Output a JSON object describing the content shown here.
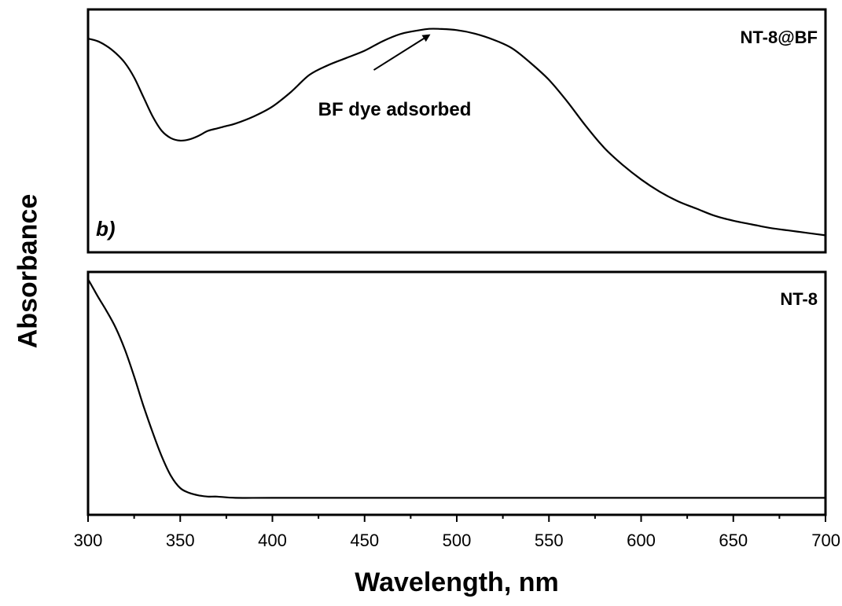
{
  "chart_data": [
    {
      "type": "line",
      "panel_label": "b)",
      "series": [
        {
          "name": "NT-8@BF",
          "x": [
            300,
            305,
            310,
            315,
            320,
            325,
            330,
            335,
            340,
            345,
            350,
            355,
            360,
            365,
            370,
            375,
            380,
            390,
            400,
            410,
            420,
            430,
            440,
            450,
            460,
            470,
            480,
            485,
            490,
            500,
            510,
            520,
            530,
            540,
            550,
            560,
            570,
            580,
            590,
            600,
            610,
            620,
            630,
            640,
            650,
            660,
            670,
            680,
            690,
            700
          ],
          "y": [
            0.88,
            0.87,
            0.85,
            0.82,
            0.78,
            0.72,
            0.64,
            0.56,
            0.5,
            0.47,
            0.46,
            0.465,
            0.48,
            0.5,
            0.51,
            0.52,
            0.53,
            0.56,
            0.6,
            0.66,
            0.73,
            0.77,
            0.8,
            0.83,
            0.87,
            0.9,
            0.915,
            0.92,
            0.92,
            0.915,
            0.9,
            0.875,
            0.84,
            0.78,
            0.71,
            0.62,
            0.52,
            0.43,
            0.36,
            0.3,
            0.25,
            0.21,
            0.18,
            0.15,
            0.13,
            0.115,
            0.1,
            0.09,
            0.08,
            0.07
          ]
        }
      ],
      "annotation": {
        "text": "BF dye adsorbed",
        "arrow_to": [
          485,
          0.92
        ],
        "arrow_from": [
          455,
          0.77
        ]
      },
      "xlim": [
        300,
        700
      ],
      "ylim": [
        0,
        1
      ]
    },
    {
      "type": "line",
      "series": [
        {
          "name": "NT-8",
          "x": [
            300,
            303,
            306,
            310,
            315,
            320,
            325,
            330,
            335,
            340,
            345,
            350,
            355,
            360,
            365,
            370,
            380,
            400,
            450,
            500,
            550,
            600,
            650,
            700
          ],
          "y": [
            0.97,
            0.93,
            0.89,
            0.84,
            0.77,
            0.68,
            0.57,
            0.45,
            0.34,
            0.24,
            0.16,
            0.11,
            0.09,
            0.08,
            0.075,
            0.075,
            0.07,
            0.07,
            0.07,
            0.07,
            0.07,
            0.07,
            0.07,
            0.07
          ]
        }
      ],
      "xlim": [
        300,
        700
      ],
      "ylim": [
        0,
        1
      ],
      "xticks": [
        "300",
        "350",
        "400",
        "450",
        "500",
        "550",
        "600",
        "650",
        "700"
      ]
    }
  ],
  "labels": {
    "ylabel": "Absorbance",
    "xlabel": "Wavelength, nm"
  }
}
